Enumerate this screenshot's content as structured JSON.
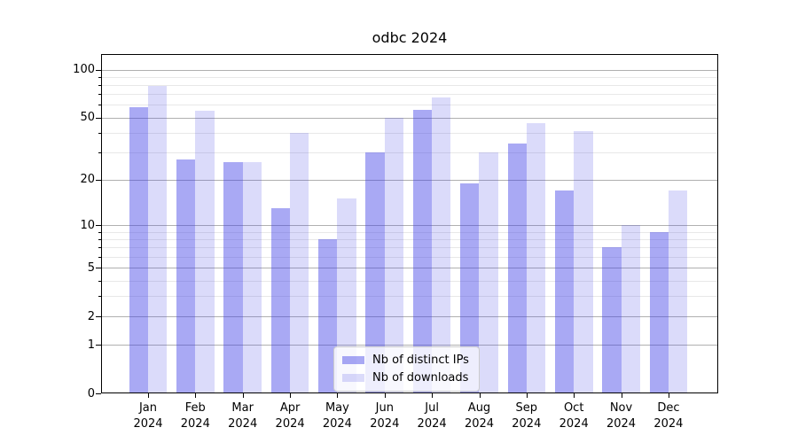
{
  "chart_data": {
    "type": "bar",
    "title": "odbc 2024",
    "categories": [
      "Jan",
      "Feb",
      "Mar",
      "Apr",
      "May",
      "Jun",
      "Jul",
      "Aug",
      "Sep",
      "Oct",
      "Nov",
      "Dec"
    ],
    "year_label": "2024",
    "series": [
      {
        "name": "Nb of distinct IPs",
        "hex": "#a9a9f4",
        "fill": "rgba(64,64,231,0.45)",
        "values": [
          58,
          27,
          26,
          13,
          8,
          30,
          56,
          19,
          34,
          17,
          7,
          9
        ]
      },
      {
        "name": "Nb of downloads",
        "hex": "#dadaf8",
        "fill": "rgba(64,64,231,0.19)",
        "values": [
          79,
          55,
          26,
          40,
          15,
          50,
          67,
          30,
          46,
          41,
          10,
          17
        ]
      }
    ],
    "yscale": "log10(value+1)",
    "ylim": [
      0,
      125
    ],
    "y_major_ticks": [
      0,
      1,
      2,
      5,
      10,
      20,
      50,
      100
    ],
    "y_minor_ticks": [
      3,
      4,
      6,
      7,
      8,
      9,
      30,
      40,
      60,
      70,
      80,
      90
    ],
    "grid": true,
    "legend_position": "lower-center",
    "colors": {
      "grid_major": "#b0b0b0",
      "grid_minor": "#e8e8e8",
      "frame": "#000000",
      "text": "#000000",
      "legend_border": "#cccccc"
    }
  }
}
